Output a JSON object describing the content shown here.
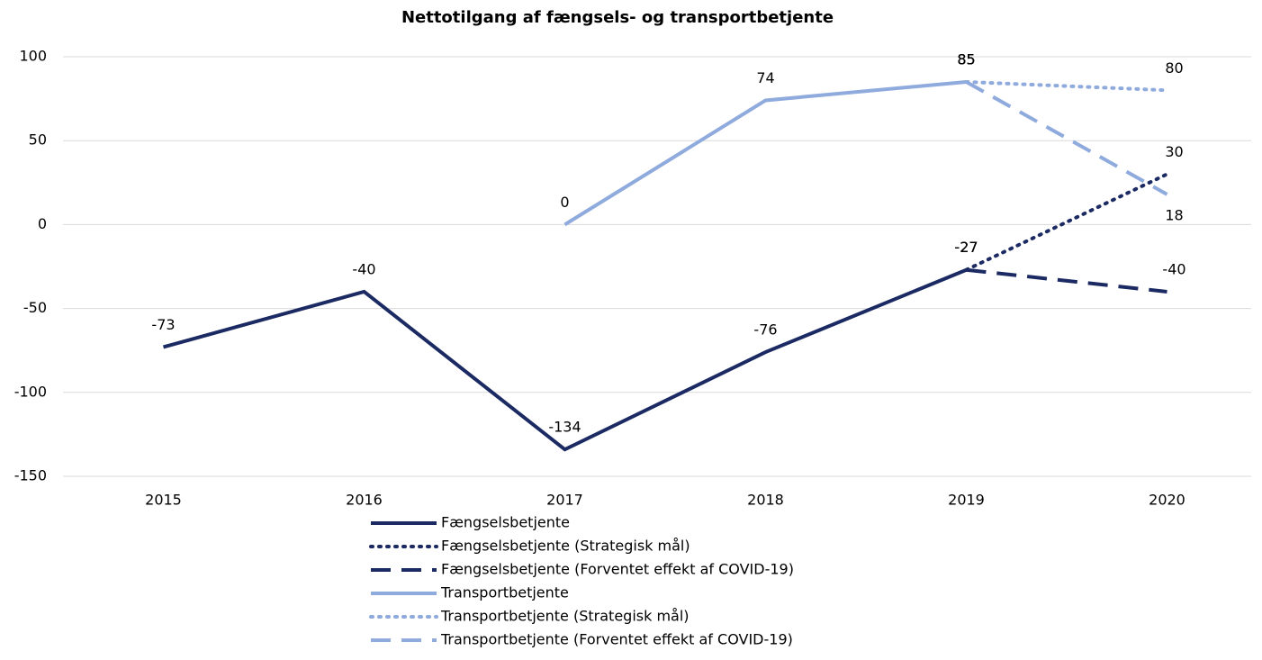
{
  "chart_data": {
    "type": "line",
    "title": "Nettotilgang af fængsels- og transportbetjente",
    "categories": [
      "2015",
      "2016",
      "2017",
      "2018",
      "2019",
      "2020"
    ],
    "ylim": [
      -150,
      100
    ],
    "yticks": [
      -150,
      -100,
      -50,
      0,
      50,
      100
    ],
    "grid": true,
    "legend": "bottom",
    "series": [
      {
        "name": "Fængselsbetjente",
        "color": "#1b2a63",
        "style": "solid",
        "values": [
          -73,
          -40,
          -134,
          -76,
          -27,
          null
        ]
      },
      {
        "name": "Fængselsbetjente (Strategisk mål)",
        "color": "#1b2a63",
        "style": "dotted",
        "values": [
          null,
          null,
          null,
          null,
          -27,
          30
        ]
      },
      {
        "name": "Fængselsbetjente (Forventet effekt af COVID-19)",
        "color": "#1b2a63",
        "style": "dashed",
        "values": [
          null,
          null,
          null,
          null,
          -27,
          -40
        ]
      },
      {
        "name": "Transportbetjente",
        "color": "#8faadc",
        "style": "solid",
        "values": [
          null,
          null,
          0,
          74,
          85,
          null
        ]
      },
      {
        "name": "Transportbetjente (Strategisk mål)",
        "color": "#8faadc",
        "style": "dotted",
        "values": [
          null,
          null,
          null,
          null,
          85,
          80
        ]
      },
      {
        "name": "Transportbetjente (Forventet effekt af COVID-19)",
        "color": "#8faadc",
        "style": "dashed",
        "values": [
          null,
          null,
          null,
          null,
          85,
          18
        ]
      }
    ]
  }
}
